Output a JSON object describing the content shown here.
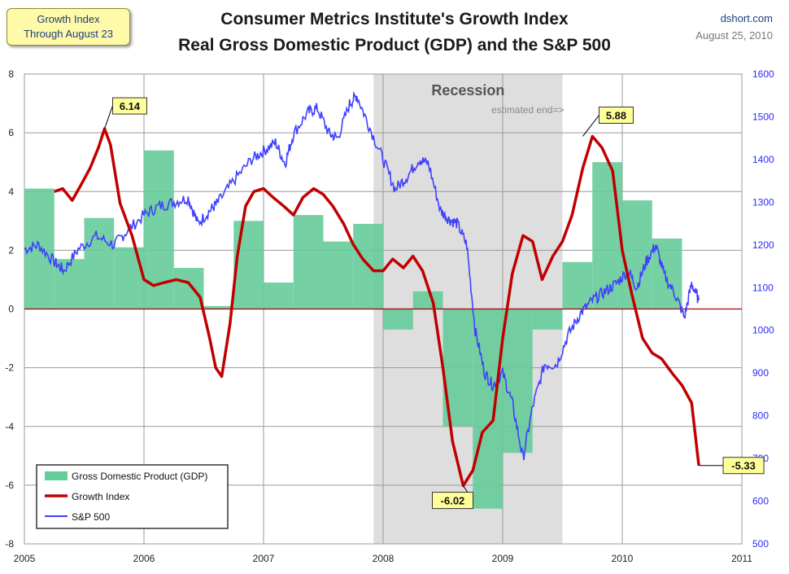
{
  "header": {
    "badge_line1": "Growth Index",
    "badge_line2": "Through  August 23",
    "title_line1": "Consumer Metrics Institute's Growth Index",
    "title_line2": "Real Gross Domestic Product (GDP) and the S&P 500",
    "source": "dshort.com",
    "date": "August 25, 2010"
  },
  "colors": {
    "gdp": "#66cc99",
    "growth": "#c00000",
    "sp500": "#4040ff",
    "recession": "#dedede",
    "zero_line": "#a00000",
    "label_bg": "#ffff99"
  },
  "chart_data": {
    "type": "bar",
    "title": "Consumer Metrics Institute's Growth Index\nReal Gross Domestic Product (GDP) and the S&P 500",
    "x_ticks": [
      "2005",
      "2006",
      "2007",
      "2008",
      "2009",
      "2010",
      "2011"
    ],
    "x_range": [
      2005,
      2011
    ],
    "y_left_range": [
      -8,
      8
    ],
    "y_left_ticks": [
      "8",
      "6",
      "4",
      "2",
      "0",
      "-2",
      "-4",
      "-6",
      "-8"
    ],
    "y_right_range": [
      500,
      1600
    ],
    "y_right_ticks": [
      "1600",
      "1500",
      "1400",
      "1300",
      "1200",
      "1100",
      "1000",
      "900",
      "800",
      "700",
      "600",
      "500"
    ],
    "grid": true,
    "legend_position": "bottom-left",
    "recession": {
      "start": 2007.92,
      "end": 2009.5,
      "label": "Recession",
      "sublabel": "estimated end=>"
    },
    "annotations": [
      {
        "x": 2005.67,
        "y": 6.14,
        "text": "6.14"
      },
      {
        "x": 2008.67,
        "y": -6.02,
        "text": "-6.02"
      },
      {
        "x": 2009.67,
        "y": 5.88,
        "text": "5.88"
      },
      {
        "x": 2010.64,
        "y": -5.33,
        "text": "-5.33"
      }
    ],
    "series": [
      {
        "name": "Gross Domestic Product (GDP)",
        "kind": "bar",
        "axis": "left",
        "quarters": [
          2005.0,
          2005.25,
          2005.5,
          2005.75,
          2006.0,
          2006.25,
          2006.5,
          2006.75,
          2007.0,
          2007.25,
          2007.5,
          2007.75,
          2008.0,
          2008.25,
          2008.5,
          2008.75,
          2009.0,
          2009.25,
          2009.5,
          2009.75,
          2010.0,
          2010.25
        ],
        "values": [
          4.1,
          1.7,
          3.1,
          2.1,
          5.4,
          1.4,
          0.1,
          3.0,
          0.9,
          3.2,
          2.3,
          2.9,
          -0.7,
          0.6,
          -4.0,
          -6.8,
          -4.9,
          -0.7,
          1.6,
          5.0,
          3.7,
          2.4
        ]
      },
      {
        "name": "Growth Index",
        "kind": "line",
        "axis": "left",
        "x": [
          2005.25,
          2005.32,
          2005.4,
          2005.47,
          2005.55,
          2005.62,
          2005.67,
          2005.72,
          2005.8,
          2005.9,
          2006.0,
          2006.08,
          2006.17,
          2006.27,
          2006.37,
          2006.47,
          2006.55,
          2006.6,
          2006.65,
          2006.72,
          2006.78,
          2006.85,
          2006.92,
          2007.0,
          2007.08,
          2007.17,
          2007.25,
          2007.33,
          2007.42,
          2007.5,
          2007.58,
          2007.67,
          2007.75,
          2007.83,
          2007.92,
          2008.0,
          2008.08,
          2008.17,
          2008.25,
          2008.33,
          2008.42,
          2008.5,
          2008.58,
          2008.67,
          2008.75,
          2008.83,
          2008.92,
          2009.0,
          2009.08,
          2009.17,
          2009.25,
          2009.33,
          2009.42,
          2009.5,
          2009.58,
          2009.67,
          2009.75,
          2009.83,
          2009.92,
          2010.0,
          2010.08,
          2010.17,
          2010.25,
          2010.33,
          2010.42,
          2010.5,
          2010.58,
          2010.64
        ],
        "values": [
          4.0,
          4.1,
          3.7,
          4.2,
          4.8,
          5.5,
          6.14,
          5.6,
          3.6,
          2.5,
          1.0,
          0.8,
          0.9,
          1.0,
          0.9,
          0.4,
          -1.0,
          -2.0,
          -2.3,
          -0.5,
          1.8,
          3.5,
          4.0,
          4.1,
          3.8,
          3.5,
          3.2,
          3.8,
          4.1,
          3.9,
          3.5,
          2.9,
          2.2,
          1.7,
          1.3,
          1.3,
          1.7,
          1.4,
          1.8,
          1.3,
          0.2,
          -2.0,
          -4.5,
          -6.02,
          -5.5,
          -4.2,
          -3.8,
          -1.0,
          1.2,
          2.5,
          2.3,
          1.0,
          1.8,
          2.3,
          3.2,
          4.8,
          5.88,
          5.5,
          4.7,
          2.0,
          0.5,
          -1.0,
          -1.5,
          -1.7,
          -2.2,
          -2.6,
          -3.2,
          -5.33
        ]
      },
      {
        "name": "S&P 500",
        "kind": "line",
        "axis": "right",
        "x": [
          2005.0,
          2005.12,
          2005.25,
          2005.33,
          2005.45,
          2005.6,
          2005.75,
          2005.85,
          2006.0,
          2006.12,
          2006.25,
          2006.37,
          2006.45,
          2006.55,
          2006.62,
          2006.75,
          2006.9,
          2007.0,
          2007.1,
          2007.18,
          2007.25,
          2007.37,
          2007.45,
          2007.55,
          2007.62,
          2007.72,
          2007.78,
          2007.88,
          2008.0,
          2008.1,
          2008.2,
          2008.3,
          2008.38,
          2008.48,
          2008.55,
          2008.62,
          2008.7,
          2008.77,
          2008.85,
          2008.92,
          2009.0,
          2009.08,
          2009.17,
          2009.25,
          2009.35,
          2009.45,
          2009.55,
          2009.65,
          2009.75,
          2009.85,
          2009.95,
          2010.05,
          2010.12,
          2010.2,
          2010.28,
          2010.35,
          2010.45,
          2010.52,
          2010.58,
          2010.64
        ],
        "values": [
          1190,
          1200,
          1160,
          1140,
          1190,
          1220,
          1200,
          1230,
          1270,
          1290,
          1300,
          1310,
          1250,
          1280,
          1300,
          1350,
          1400,
          1420,
          1440,
          1390,
          1460,
          1510,
          1520,
          1460,
          1450,
          1530,
          1550,
          1480,
          1400,
          1330,
          1360,
          1400,
          1390,
          1280,
          1260,
          1250,
          1200,
          1000,
          900,
          870,
          900,
          830,
          700,
          820,
          920,
          920,
          990,
          1040,
          1070,
          1090,
          1110,
          1140,
          1100,
          1160,
          1200,
          1130,
          1080,
          1030,
          1110,
          1070
        ]
      }
    ]
  }
}
